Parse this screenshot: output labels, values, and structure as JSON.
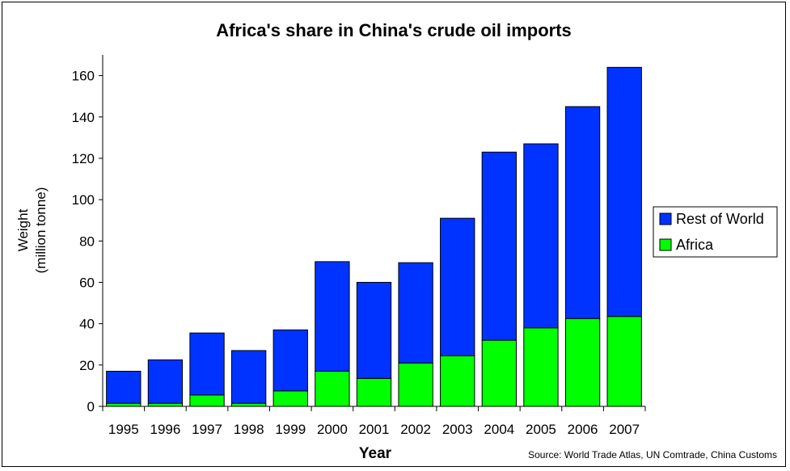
{
  "chart_data": {
    "type": "bar",
    "stacked": true,
    "title": "Africa's share in China's crude oil imports",
    "xlabel": "Year",
    "ylabel": [
      "Weight",
      "(million tonne)"
    ],
    "source": "Source:  World Trade Atlas, UN Comtrade, China Customs",
    "ylim": [
      0,
      170
    ],
    "yticks": [
      0,
      20,
      40,
      60,
      80,
      100,
      120,
      140,
      160
    ],
    "legend_position": "right",
    "grid": false,
    "categories": [
      "1995",
      "1996",
      "1997",
      "1998",
      "1999",
      "2000",
      "2001",
      "2002",
      "2003",
      "2004",
      "2005",
      "2006",
      "2007"
    ],
    "totals": [
      17,
      22.5,
      35.5,
      27,
      37,
      70,
      60,
      69.5,
      91,
      123,
      127,
      145,
      164
    ],
    "series": [
      {
        "name": "Africa",
        "color": "#00ff00",
        "values": [
          1.5,
          1.5,
          5.5,
          1.5,
          7.5,
          17,
          13.5,
          21,
          24.5,
          32,
          38,
          42.5,
          43.5
        ]
      },
      {
        "name": "Rest of World",
        "color": "#0033ff",
        "values": [
          15.5,
          21,
          30,
          25.5,
          29.5,
          53,
          46.5,
          48.5,
          66.5,
          91,
          89,
          102.5,
          120.5
        ]
      }
    ]
  }
}
